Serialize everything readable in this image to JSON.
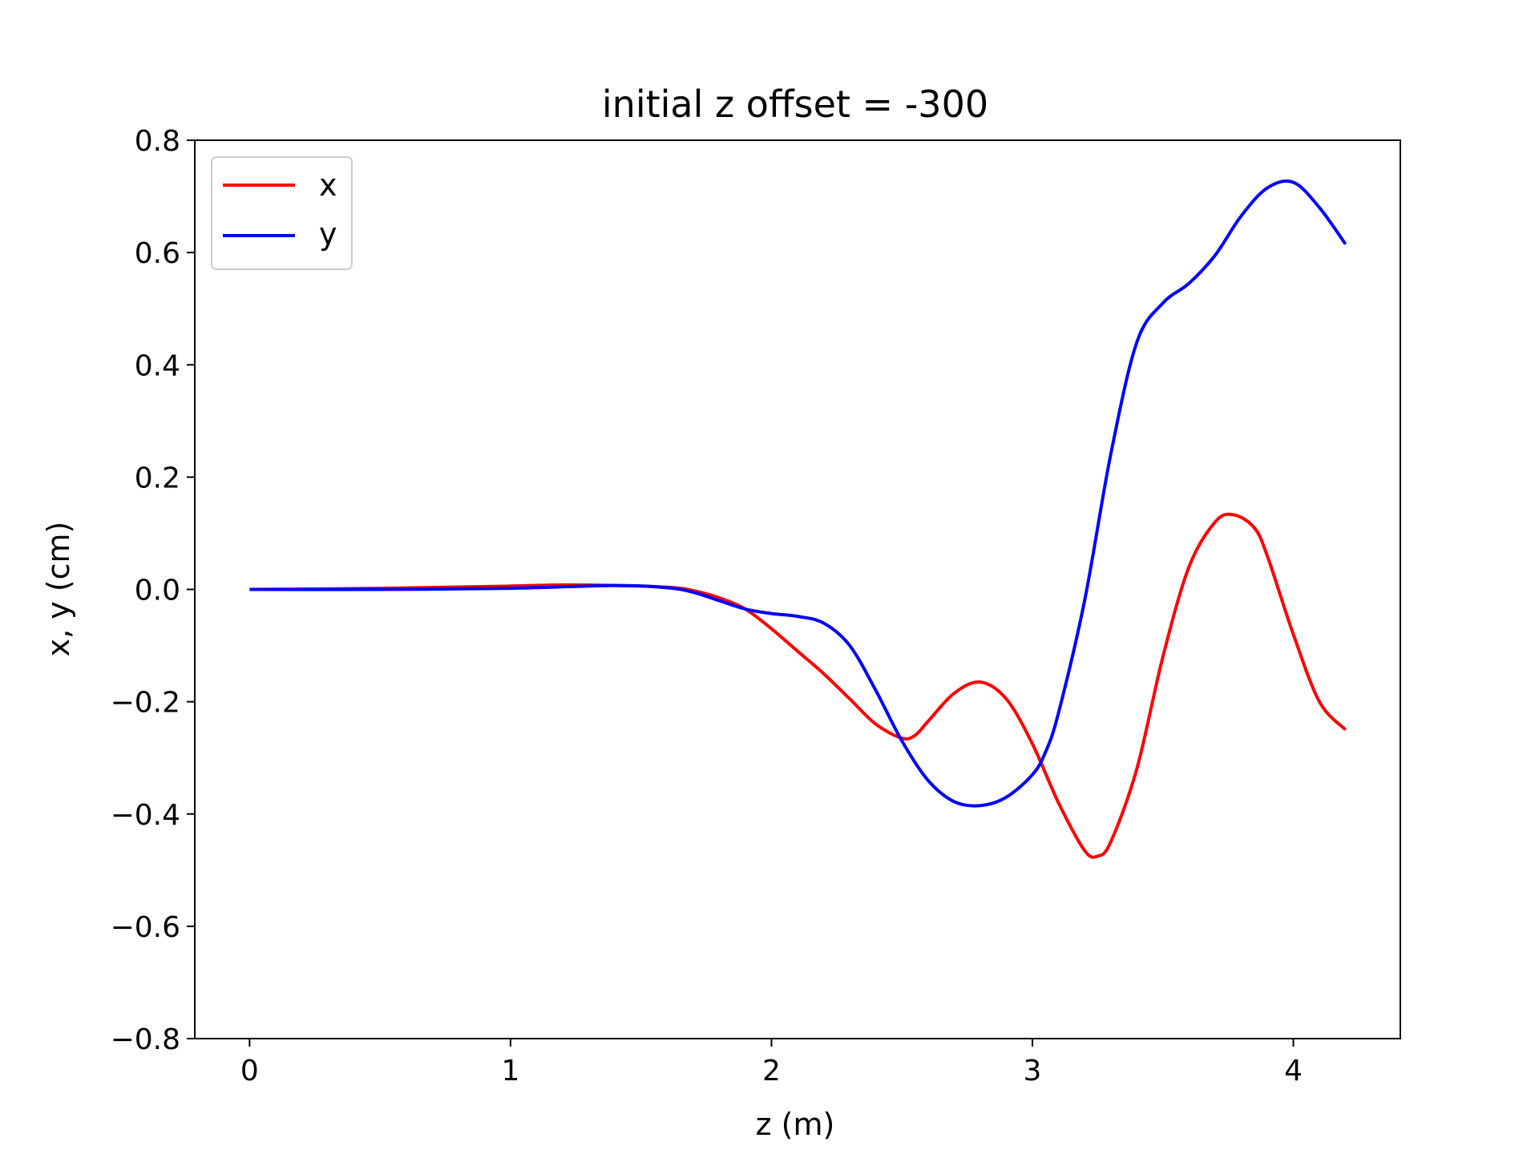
{
  "chart_data": {
    "type": "line",
    "title": "initial z offset = -300",
    "xlabel": "z (m)",
    "ylabel": "x, y (cm)",
    "xlim": [
      -0.21,
      4.41
    ],
    "ylim": [
      -0.8,
      0.8
    ],
    "xticks": [
      0,
      1,
      2,
      3,
      4
    ],
    "yticks": [
      -0.8,
      -0.6,
      -0.4,
      -0.2,
      0.0,
      0.2,
      0.4,
      0.6,
      0.8
    ],
    "xtick_labels": [
      "0",
      "1",
      "2",
      "3",
      "4"
    ],
    "ytick_labels": [
      "−0.8",
      "−0.6",
      "−0.4",
      "−0.2",
      "0.0",
      "0.2",
      "0.4",
      "0.6",
      "0.8"
    ],
    "grid": false,
    "legend_position": "upper-left",
    "series": [
      {
        "name": "x",
        "color": "#ff0000",
        "points": [
          [
            0.0,
            0.0
          ],
          [
            0.5,
            0.002
          ],
          [
            1.0,
            0.006
          ],
          [
            1.2,
            0.008
          ],
          [
            1.4,
            0.007
          ],
          [
            1.6,
            0.004
          ],
          [
            1.7,
            -0.002
          ],
          [
            1.8,
            -0.015
          ],
          [
            1.9,
            -0.035
          ],
          [
            2.0,
            -0.07
          ],
          [
            2.1,
            -0.11
          ],
          [
            2.2,
            -0.15
          ],
          [
            2.3,
            -0.195
          ],
          [
            2.4,
            -0.24
          ],
          [
            2.5,
            -0.265
          ],
          [
            2.55,
            -0.26
          ],
          [
            2.6,
            -0.235
          ],
          [
            2.7,
            -0.185
          ],
          [
            2.8,
            -0.165
          ],
          [
            2.9,
            -0.195
          ],
          [
            3.0,
            -0.275
          ],
          [
            3.1,
            -0.38
          ],
          [
            3.2,
            -0.465
          ],
          [
            3.25,
            -0.475
          ],
          [
            3.3,
            -0.45
          ],
          [
            3.4,
            -0.32
          ],
          [
            3.5,
            -0.12
          ],
          [
            3.6,
            0.04
          ],
          [
            3.7,
            0.12
          ],
          [
            3.77,
            0.133
          ],
          [
            3.85,
            0.11
          ],
          [
            3.9,
            0.06
          ],
          [
            4.0,
            -0.08
          ],
          [
            4.1,
            -0.2
          ],
          [
            4.2,
            -0.25
          ]
        ]
      },
      {
        "name": "y",
        "color": "#0000ff",
        "points": [
          [
            0.0,
            0.0
          ],
          [
            0.5,
            0.0
          ],
          [
            1.0,
            0.002
          ],
          [
            1.4,
            0.007
          ],
          [
            1.6,
            0.003
          ],
          [
            1.7,
            -0.005
          ],
          [
            1.8,
            -0.02
          ],
          [
            1.9,
            -0.035
          ],
          [
            2.0,
            -0.043
          ],
          [
            2.1,
            -0.048
          ],
          [
            2.2,
            -0.06
          ],
          [
            2.3,
            -0.1
          ],
          [
            2.4,
            -0.18
          ],
          [
            2.5,
            -0.27
          ],
          [
            2.6,
            -0.34
          ],
          [
            2.7,
            -0.378
          ],
          [
            2.8,
            -0.385
          ],
          [
            2.9,
            -0.37
          ],
          [
            3.0,
            -0.33
          ],
          [
            3.05,
            -0.29
          ],
          [
            3.1,
            -0.22
          ],
          [
            3.2,
            -0.02
          ],
          [
            3.3,
            0.24
          ],
          [
            3.4,
            0.44
          ],
          [
            3.5,
            0.51
          ],
          [
            3.6,
            0.545
          ],
          [
            3.7,
            0.595
          ],
          [
            3.8,
            0.665
          ],
          [
            3.9,
            0.715
          ],
          [
            4.0,
            0.725
          ],
          [
            4.1,
            0.68
          ],
          [
            4.2,
            0.615
          ]
        ]
      }
    ]
  }
}
